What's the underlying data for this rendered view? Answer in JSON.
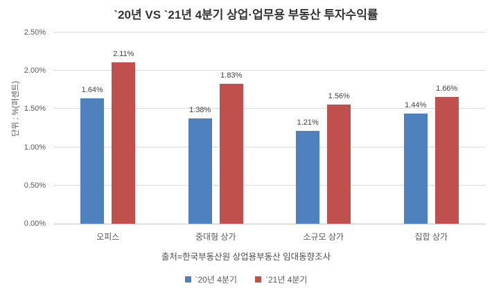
{
  "chart_data": {
    "type": "bar",
    "title": "`20년 VS `21년 4분기 상업·업무용 부동산 투자수익률",
    "ylabel": "단위 : %(퍼센트)",
    "xlabel": "",
    "categories": [
      "오피스",
      "중대형 상가",
      "소규모 상가",
      "집합 상가"
    ],
    "series": [
      {
        "name": "`20년 4분기",
        "color": "#4e81bd",
        "values": [
          1.64,
          1.38,
          1.21,
          1.44
        ],
        "labels": [
          "1.64%",
          "1.38%",
          "1.21%",
          "1.44%"
        ]
      },
      {
        "name": "`21년 4분기",
        "color": "#c0504d",
        "values": [
          2.11,
          1.83,
          1.56,
          1.66
        ],
        "labels": [
          "2.11%",
          "1.83%",
          "1.56%",
          "1.66%"
        ]
      }
    ],
    "ylim": [
      0,
      2.5
    ],
    "ytick_step": 0.5,
    "yticks": [
      "0.00%",
      "0.50%",
      "1.00%",
      "1.50%",
      "2.00%",
      "2.50%"
    ],
    "grid": true,
    "legend_position": "bottom",
    "source": "출처=한국부동산원 상업용부동산 임대동향조사"
  }
}
